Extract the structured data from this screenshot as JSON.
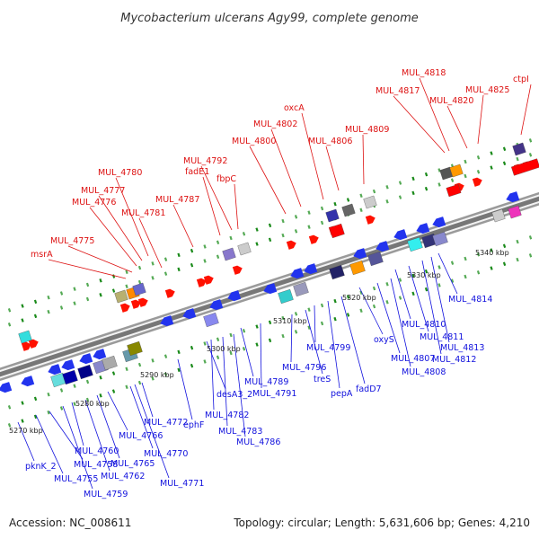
{
  "title": "Mycobacterium ulcerans Agy99, complete genome",
  "accession": "Accession: NC_008611",
  "summary": "Topology: circular; Length: 5,631,606 bp; Genes: 4,210",
  "colors": {
    "forward_label": "#dd1111",
    "reverse_label": "#1111dd",
    "forward_gene": "#ff0000",
    "reverse_gene": "#2222dd",
    "backbone": "#888888",
    "tick_green": "#1a8a1a"
  },
  "ticks": [
    "5270 kbp",
    "5280 kbp",
    "5290 kbp",
    "5300 kbp",
    "5310 kbp",
    "5320 kbp",
    "5330 kbp",
    "5340 kbp"
  ],
  "forward_labels": [
    "msrA",
    "MUL_4775",
    "MUL_4776",
    "MUL_4777",
    "MUL_4780",
    "MUL_4781",
    "MUL_4787",
    "fadE1",
    "MUL_4792",
    "fbpC",
    "MUL_4800",
    "MUL_4802",
    "oxcA",
    "MUL_4806",
    "MUL_4809",
    "MUL_4817",
    "MUL_4818",
    "MUL_4820",
    "MUL_4825",
    "ctpI"
  ],
  "reverse_labels": [
    "pknK_2",
    "MUL_4755",
    "MUL_4758",
    "MUL_4759",
    "MUL_4760",
    "MUL_4762",
    "MUL_4765",
    "MUL_4766",
    "MUL_4770",
    "MUL_4771",
    "MUL_4772",
    "ephF",
    "desA3_2",
    "MUL_4782",
    "MUL_4783",
    "MUL_4786",
    "MUL_4789",
    "MUL_4791",
    "MUL_4796",
    "treS",
    "MUL_4799",
    "pepA",
    "fadD7",
    "oxyS",
    "MUL_4807",
    "MUL_4808",
    "MUL_4810",
    "MUL_4811",
    "MUL_4812",
    "MUL_4813",
    "MUL_4814"
  ]
}
